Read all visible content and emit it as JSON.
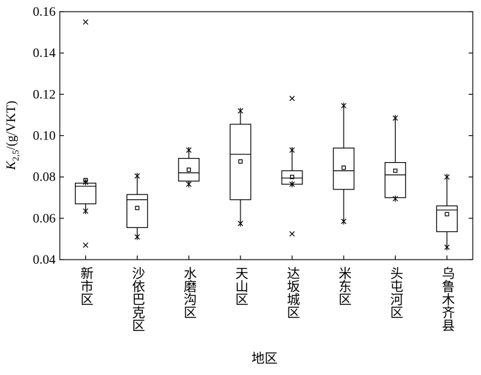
{
  "chart_data": {
    "type": "box",
    "y_label": {
      "main": "K",
      "sub": "2,5",
      "rest": "/(g/VKT)"
    },
    "x_label": "地区",
    "categories": [
      "新市区",
      "沙依巴克区",
      "水磨沟区",
      "天山区",
      "达坂城区",
      "米东区",
      "头屯河区",
      "乌鲁木齐县"
    ],
    "boxes": [
      {
        "min": 0.0635,
        "q1": 0.067,
        "median": 0.0755,
        "q3": 0.077,
        "max": 0.0775,
        "mean": 0.0785,
        "outliers": [
          0.155,
          0.047
        ]
      },
      {
        "min": 0.051,
        "q1": 0.0555,
        "median": 0.069,
        "q3": 0.0715,
        "max": 0.0805,
        "mean": 0.065
      },
      {
        "min": 0.0765,
        "q1": 0.078,
        "median": 0.082,
        "q3": 0.089,
        "max": 0.093,
        "mean": 0.0835
      },
      {
        "min": 0.0575,
        "q1": 0.069,
        "median": 0.091,
        "q3": 0.1055,
        "max": 0.112,
        "mean": 0.0875
      },
      {
        "min": 0.0765,
        "q1": 0.0765,
        "median": 0.0795,
        "q3": 0.083,
        "max": 0.093,
        "mean": 0.08,
        "outliers": [
          0.118,
          0.0525
        ]
      },
      {
        "min": 0.0585,
        "q1": 0.074,
        "median": 0.083,
        "q3": 0.094,
        "max": 0.1145,
        "mean": 0.0845
      },
      {
        "min": 0.0695,
        "q1": 0.07,
        "median": 0.081,
        "q3": 0.087,
        "max": 0.1085,
        "mean": 0.083
      },
      {
        "min": 0.046,
        "q1": 0.0535,
        "median": 0.064,
        "q3": 0.066,
        "max": 0.08,
        "mean": 0.062
      }
    ],
    "ylim": [
      0.04,
      0.16
    ],
    "yticks": [
      {
        "value": 0.04,
        "label": "0.04"
      },
      {
        "value": 0.06,
        "label": "0.06"
      },
      {
        "value": 0.08,
        "label": "0.08"
      },
      {
        "value": 0.1,
        "label": "0.10"
      },
      {
        "value": 0.12,
        "label": "0.12"
      },
      {
        "value": 0.14,
        "label": "0.14"
      },
      {
        "value": 0.16,
        "label": "0.16"
      }
    ],
    "color": "#000000"
  }
}
